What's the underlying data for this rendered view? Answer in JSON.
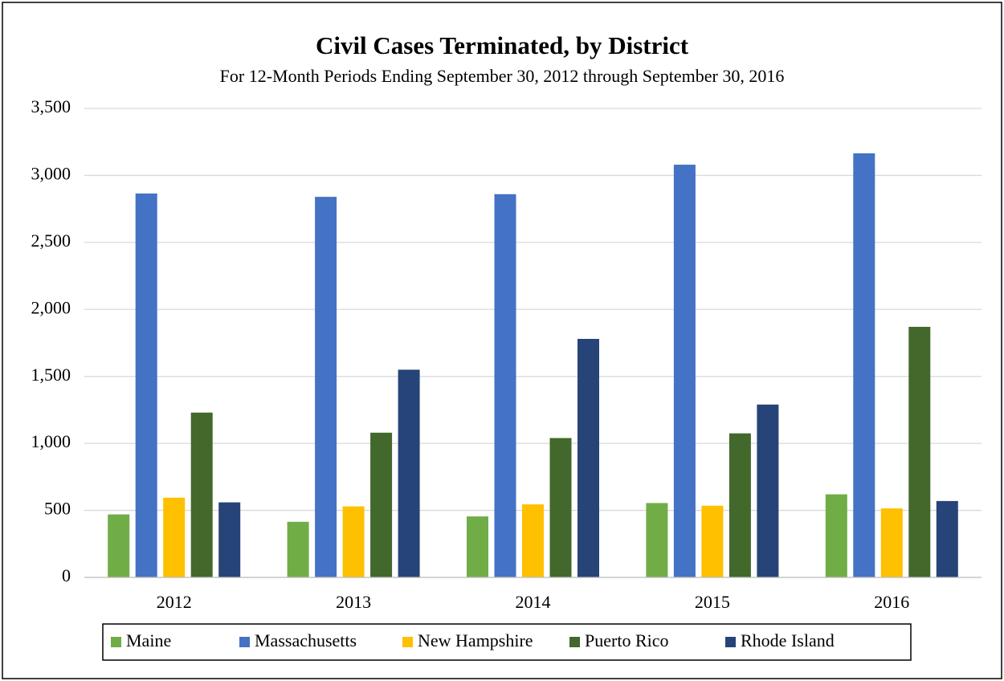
{
  "chart_data": {
    "type": "bar",
    "title": "Civil Cases Terminated, by District",
    "subtitle": "For 12-Month Periods Ending September 30, 2012 through September 30, 2016",
    "categories": [
      "2012",
      "2013",
      "2014",
      "2015",
      "2016"
    ],
    "series": [
      {
        "name": "Maine",
        "color": "#70ad47",
        "values": [
          470,
          415,
          455,
          555,
          620
        ]
      },
      {
        "name": "Massachusetts",
        "color": "#4472c4",
        "values": [
          2865,
          2840,
          2860,
          3080,
          3165
        ]
      },
      {
        "name": "New Hampshire",
        "color": "#ffc000",
        "values": [
          595,
          530,
          545,
          535,
          515
        ]
      },
      {
        "name": "Puerto Rico",
        "color": "#43682b",
        "values": [
          1230,
          1080,
          1040,
          1075,
          1870
        ]
      },
      {
        "name": "Rhode Island",
        "color": "#264478",
        "values": [
          560,
          1550,
          1780,
          1290,
          570
        ]
      }
    ],
    "ylim": [
      0,
      3500
    ],
    "yticks": [
      0,
      500,
      {
        "value": 1000,
        "label": "1,000"
      },
      {
        "value": 1500,
        "label": "1,500"
      },
      {
        "value": 2000,
        "label": "2,000"
      },
      {
        "value": 2500,
        "label": "2,500"
      },
      {
        "value": 3000,
        "label": "3,000"
      },
      {
        "value": 3500,
        "label": "3,500"
      }
    ],
    "grid": true,
    "legend": "bottom"
  }
}
